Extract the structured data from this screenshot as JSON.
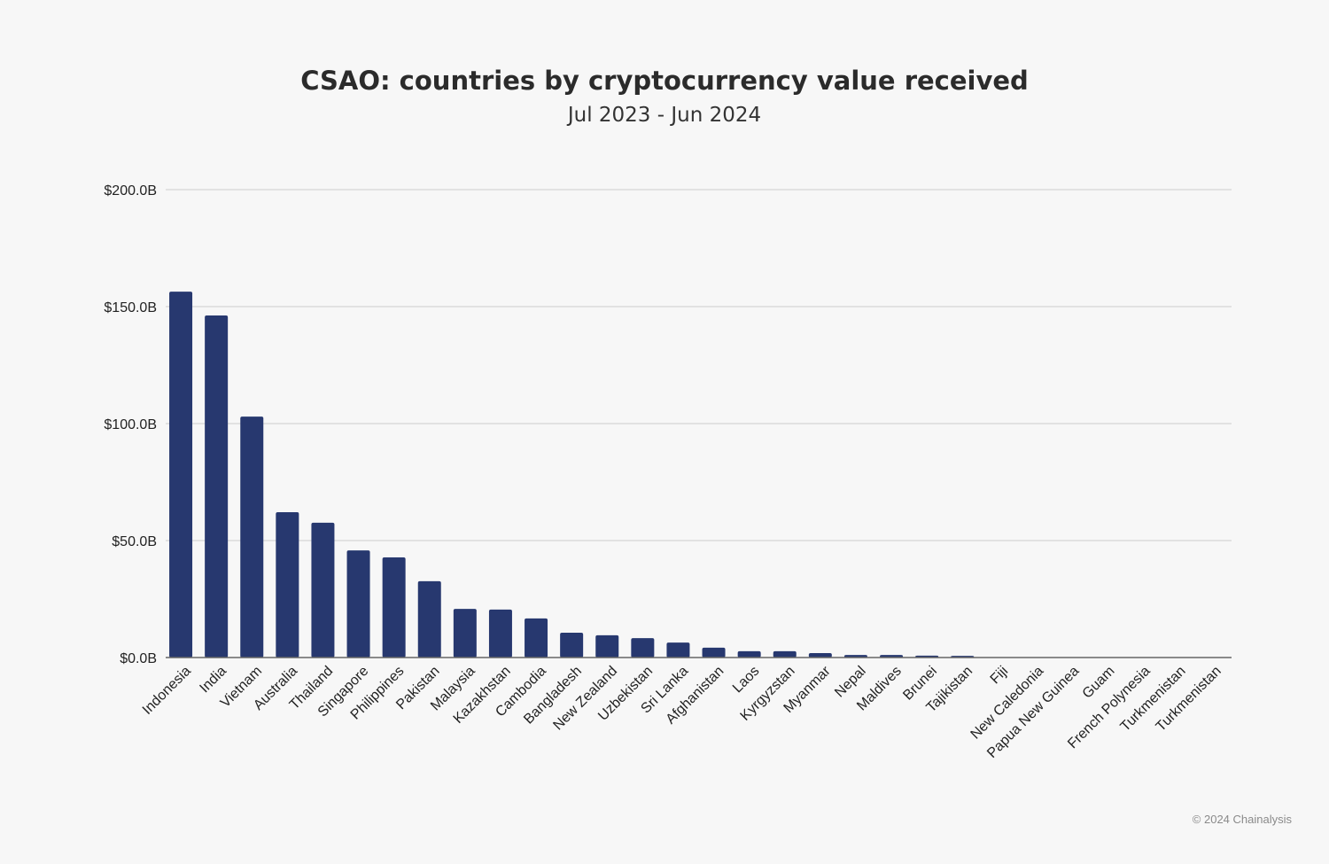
{
  "chart_data": {
    "type": "bar",
    "title": "CSAO: countries by cryptocurrency value received",
    "subtitle": "Jul 2023 - Jun 2024",
    "xlabel": "",
    "ylabel": "",
    "ylim": [
      0,
      200
    ],
    "yticks": [
      0,
      50,
      100,
      150,
      200
    ],
    "ytick_labels": [
      "$0.0B",
      "$50.0B",
      "$100.0B",
      "$150.0B",
      "$200.0B"
    ],
    "grid": true,
    "bar_color": "#27386f",
    "categories": [
      "Indonesia",
      "India",
      "Vietnam",
      "Australia",
      "Thailand",
      "Singapore",
      "Philippines",
      "Pakistan",
      "Malaysia",
      "Kazakhstan",
      "Cambodia",
      "Bangladesh",
      "New Zealand",
      "Uzbekistan",
      "Sri Lanka",
      "Afghanistan",
      "Laos",
      "Kyrgyzstan",
      "Myanmar",
      "Nepal",
      "Maldives",
      "Brunei",
      "Tajikistan",
      "Fiji",
      "New Caledonia",
      "Papua New Guinea",
      "Guam",
      "French Polynesia",
      "Turkmenistan",
      "Turkmenistan"
    ],
    "values": [
      156.4,
      146.2,
      103.0,
      62.1,
      57.6,
      45.8,
      42.8,
      32.6,
      20.8,
      20.5,
      16.7,
      10.6,
      9.5,
      8.3,
      6.4,
      4.2,
      2.7,
      2.7,
      1.9,
      1.1,
      1.1,
      0.8,
      0.7,
      0.05,
      0.03,
      0.02,
      0.01,
      0.01,
      0.01,
      0.01
    ],
    "units": "USD billions"
  },
  "footer": {
    "credit": "© 2024 Chainalysis"
  }
}
